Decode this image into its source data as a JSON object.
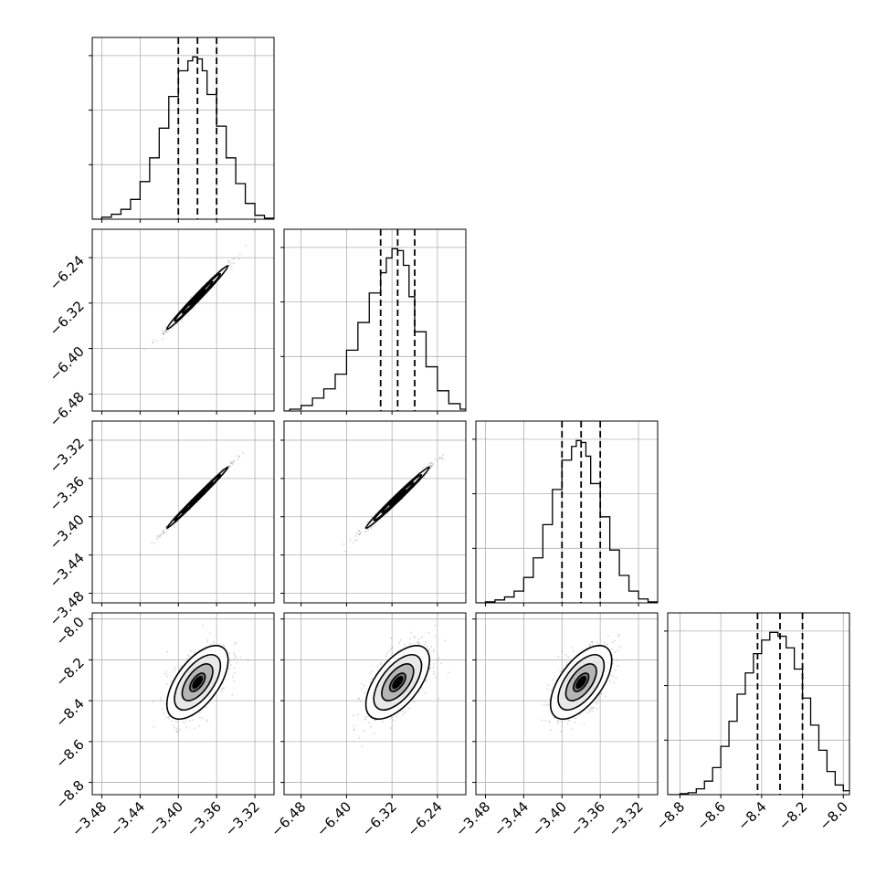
{
  "chart_data": {
    "type": "corner",
    "params": [
      {
        "axis_range": [
          -3.49,
          -3.3
        ],
        "ticks": [
          -3.48,
          -3.44,
          -3.4,
          -3.36,
          -3.32
        ],
        "tick_labels": [
          "−3.48",
          "−3.44",
          "−3.40",
          "−3.36",
          "−3.32"
        ],
        "quantiles": [
          -3.4,
          -3.38,
          -3.36
        ],
        "hist_bins": [
          -3.49,
          -3.48,
          -3.47,
          -3.46,
          -3.45,
          -3.44,
          -3.43,
          -3.42,
          -3.41,
          -3.4,
          -3.39,
          -3.385,
          -3.38,
          -3.375,
          -3.37,
          -3.36,
          -3.35,
          -3.34,
          -3.33,
          -3.32,
          -3.31,
          -3.3
        ],
        "hist_values": [
          0,
          2,
          5,
          10,
          20,
          38,
          62,
          92,
          124,
          150,
          160,
          164,
          162,
          150,
          126,
          94,
          62,
          36,
          16,
          4,
          1
        ]
      },
      {
        "axis_range": [
          -6.51,
          -6.19
        ],
        "ticks": [
          -6.48,
          -6.4,
          -6.32,
          -6.24
        ],
        "tick_labels": [
          "−6.48",
          "−6.40",
          "−6.32",
          "−6.24"
        ],
        "quantiles": [
          -6.34,
          -6.31,
          -6.28
        ],
        "hist_bins": [
          -6.51,
          -6.5,
          -6.48,
          -6.46,
          -6.44,
          -6.42,
          -6.4,
          -6.38,
          -6.36,
          -6.34,
          -6.33,
          -6.32,
          -6.31,
          -6.3,
          -6.29,
          -6.28,
          -6.26,
          -6.24,
          -6.22,
          -6.2,
          -6.19
        ],
        "hist_values": [
          0,
          2,
          6,
          14,
          24,
          40,
          66,
          96,
          128,
          150,
          166,
          176,
          174,
          158,
          124,
          86,
          48,
          22,
          8,
          2
        ]
      },
      {
        "axis_range": [
          -3.49,
          -3.3
        ],
        "ticks": [
          -3.48,
          -3.44,
          -3.4,
          -3.36,
          -3.32
        ],
        "tick_labels": [
          "−3.48",
          "−3.44",
          "−3.40",
          "−3.36",
          "−3.32"
        ],
        "quantiles": [
          -3.4,
          -3.38,
          -3.36
        ],
        "hist_bins": [
          -3.49,
          -3.48,
          -3.47,
          -3.46,
          -3.45,
          -3.44,
          -3.43,
          -3.42,
          -3.41,
          -3.4,
          -3.39,
          -3.385,
          -3.38,
          -3.375,
          -3.37,
          -3.36,
          -3.35,
          -3.34,
          -3.33,
          -3.32,
          -3.31,
          -3.3
        ],
        "hist_values": [
          0,
          1,
          3,
          6,
          12,
          26,
          46,
          80,
          116,
          146,
          160,
          166,
          164,
          150,
          122,
          88,
          54,
          28,
          12,
          4,
          1
        ]
      },
      {
        "axis_range": [
          -8.86,
          -7.97
        ],
        "ticks": [
          -8.8,
          -8.6,
          -8.4,
          -8.2,
          -8.0
        ],
        "tick_labels": [
          "−8.8",
          "−8.6",
          "−8.4",
          "−8.2",
          "−8.0"
        ],
        "quantiles": [
          -8.42,
          -8.31,
          -8.2
        ],
        "hist_bins": [
          -8.86,
          -8.8,
          -8.76,
          -8.72,
          -8.68,
          -8.64,
          -8.6,
          -8.56,
          -8.52,
          -8.48,
          -8.44,
          -8.4,
          -8.36,
          -8.32,
          -8.28,
          -8.24,
          -8.2,
          -8.16,
          -8.12,
          -8.08,
          -8.04,
          -8.0,
          -7.97
        ],
        "hist_values": [
          0,
          1,
          2,
          6,
          14,
          28,
          50,
          76,
          104,
          126,
          146,
          160,
          168,
          164,
          152,
          130,
          100,
          72,
          46,
          24,
          10,
          4
        ]
      }
    ],
    "pairs": [
      {
        "row": 1,
        "col": 0,
        "center": [
          -3.38,
          -6.31
        ],
        "sigma": [
          0.016,
          0.028
        ],
        "rho": 0.99
      },
      {
        "row": 2,
        "col": 0,
        "center": [
          -3.38,
          -3.38
        ],
        "sigma": [
          0.016,
          0.016
        ],
        "rho": 0.995
      },
      {
        "row": 2,
        "col": 1,
        "center": [
          -6.31,
          -3.38
        ],
        "sigma": [
          0.028,
          0.016
        ],
        "rho": 0.99
      },
      {
        "row": 3,
        "col": 0,
        "center": [
          -3.38,
          -8.31
        ],
        "sigma": [
          0.016,
          0.09
        ],
        "rho": 0.6
      },
      {
        "row": 3,
        "col": 1,
        "center": [
          -6.31,
          -8.31
        ],
        "sigma": [
          0.028,
          0.09
        ],
        "rho": 0.6
      },
      {
        "row": 3,
        "col": 2,
        "center": [
          -3.38,
          -8.31
        ],
        "sigma": [
          0.016,
          0.09
        ],
        "rho": 0.6
      }
    ],
    "contour_levels": [
      0.5,
      1.0,
      1.5,
      2.0
    ],
    "grid": true,
    "colors": {
      "density": "#000000",
      "points": "#888888",
      "grid": "#b0b0b0"
    }
  }
}
